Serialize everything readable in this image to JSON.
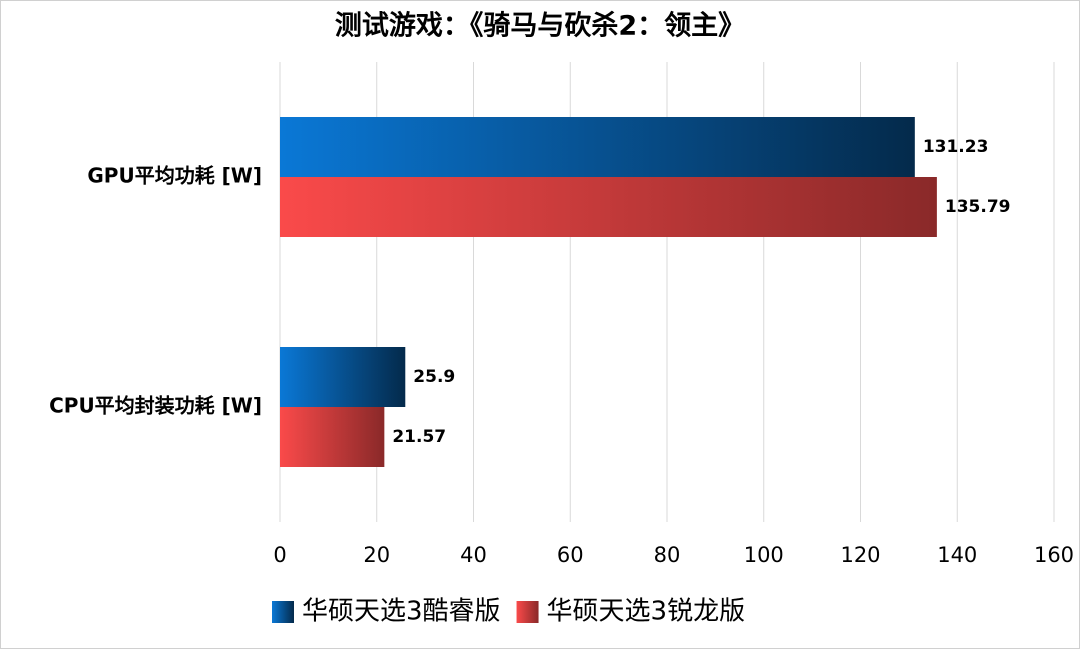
{
  "chart_data": {
    "type": "barh",
    "title": "测试游戏：《骑马与砍杀2：领主》",
    "categories": [
      "GPU平均功耗 [W]",
      "CPU平均封装功耗 [W]"
    ],
    "series": [
      {
        "name": "华硕天选3酷睿版",
        "color": "#0a78d6",
        "values": [
          131.23,
          25.9
        ]
      },
      {
        "name": "华硕天选3锐龙版",
        "color": "#fa4a4a",
        "values": [
          135.79,
          21.57
        ]
      }
    ],
    "xlim": [
      0,
      160
    ],
    "xticks": [
      0,
      20,
      40,
      60,
      80,
      100,
      120,
      140,
      160
    ],
    "grid": true,
    "legend": "bottom"
  }
}
